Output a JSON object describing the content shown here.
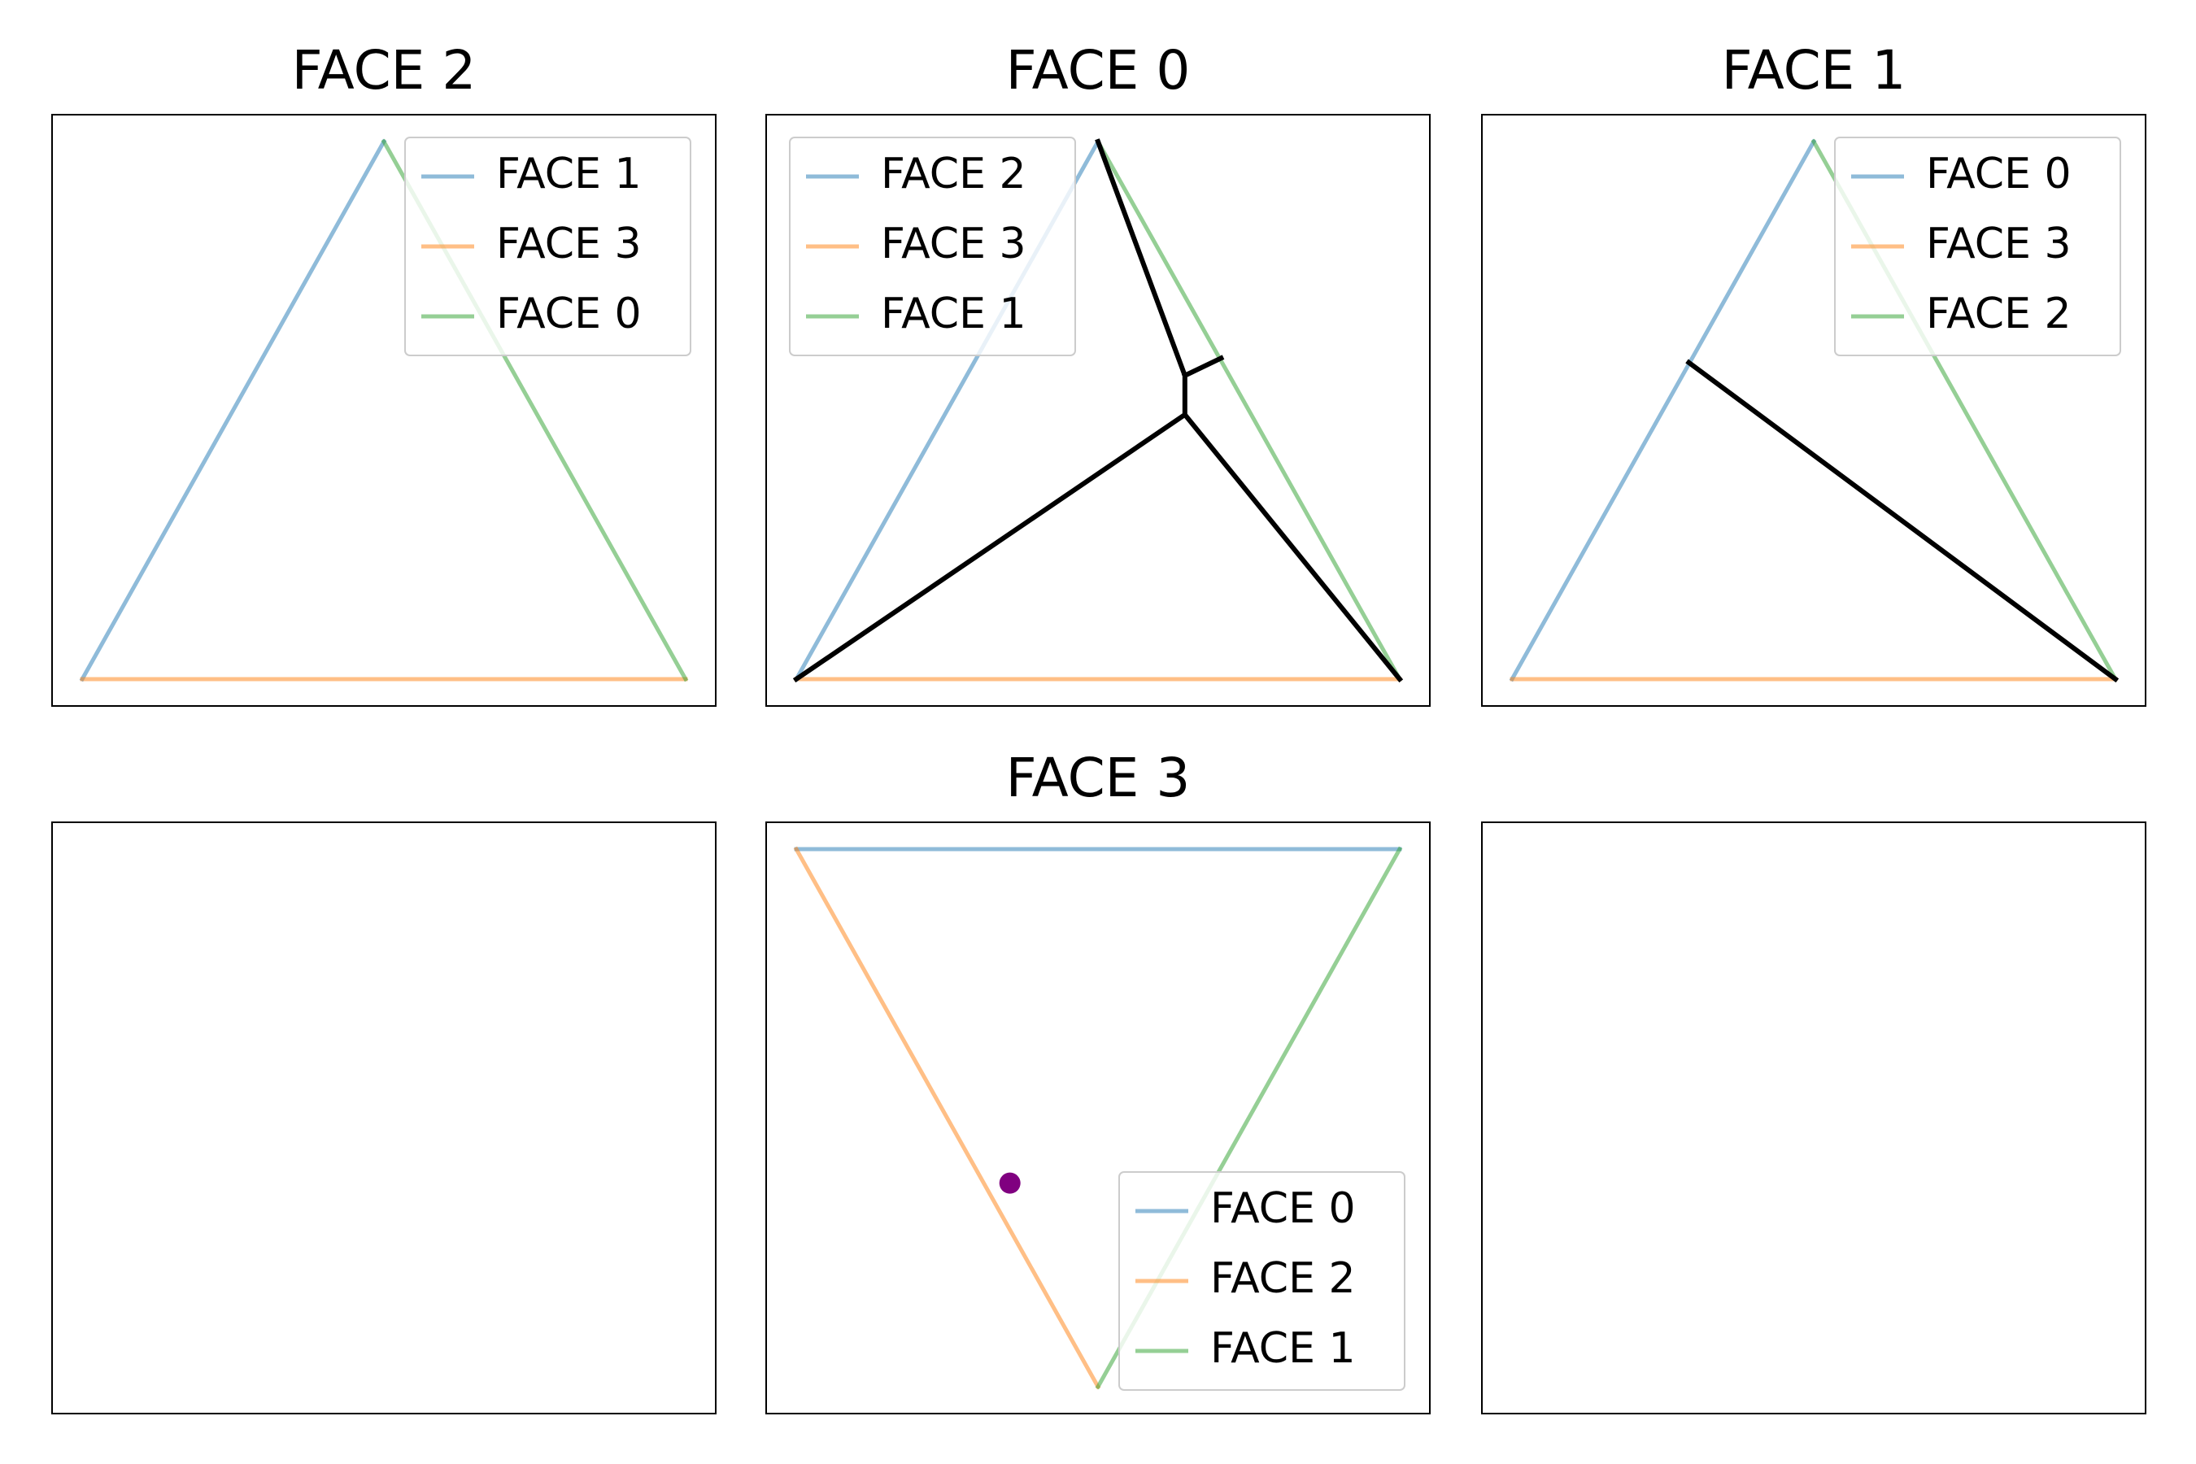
{
  "chart_data": [
    {
      "type": "line",
      "title": "FACE 2",
      "legend": "upper right",
      "xlim": [
        -0.05,
        1.05
      ],
      "ylim": [
        -0.0433,
        0.9093
      ],
      "series": [
        {
          "name": "FACE 1",
          "color": "#1f77b4",
          "alpha": 0.5,
          "x": [
            0,
            0.5
          ],
          "values": [
            0,
            0.866
          ]
        },
        {
          "name": "FACE 3",
          "color": "#ff7f0e",
          "alpha": 0.5,
          "x": [
            0,
            1
          ],
          "values": [
            0,
            0
          ]
        },
        {
          "name": "FACE 0",
          "color": "#2ca02c",
          "alpha": 0.5,
          "x": [
            0.5,
            1
          ],
          "values": [
            0.866,
            0
          ]
        }
      ]
    },
    {
      "type": "line",
      "title": "FACE 0",
      "legend": "upper left",
      "xlim": [
        -0.05,
        1.05
      ],
      "ylim": [
        -0.0433,
        0.9093
      ],
      "series": [
        {
          "name": "FACE 2",
          "color": "#1f77b4",
          "alpha": 0.5,
          "x": [
            0,
            0.5
          ],
          "values": [
            0,
            0.866
          ]
        },
        {
          "name": "FACE 3",
          "color": "#ff7f0e",
          "alpha": 0.5,
          "x": [
            0,
            1
          ],
          "values": [
            0,
            0
          ]
        },
        {
          "name": "FACE 1",
          "color": "#2ca02c",
          "alpha": 0.5,
          "x": [
            0.5,
            1
          ],
          "values": [
            0.866,
            0
          ]
        },
        {
          "color": "#000000",
          "alpha": 1,
          "x": [
            0.5,
            0.644,
            0.644,
            0,
            null,
            0.644,
            1,
            null,
            0.644,
            0.704
          ],
          "values": [
            0.866,
            0.489,
            0.426,
            0,
            null,
            0.426,
            0,
            null,
            0.489,
            0.517
          ]
        }
      ]
    },
    {
      "type": "line",
      "title": "FACE 1",
      "legend": "upper right",
      "xlim": [
        -0.05,
        1.05
      ],
      "ylim": [
        -0.0433,
        0.9093
      ],
      "series": [
        {
          "name": "FACE 0",
          "color": "#1f77b4",
          "alpha": 0.5,
          "x": [
            0,
            0.5
          ],
          "values": [
            0,
            0.866
          ]
        },
        {
          "name": "FACE 3",
          "color": "#ff7f0e",
          "alpha": 0.5,
          "x": [
            0,
            1
          ],
          "values": [
            0,
            0
          ]
        },
        {
          "name": "FACE 2",
          "color": "#2ca02c",
          "alpha": 0.5,
          "x": [
            0.5,
            1
          ],
          "values": [
            0.866,
            0
          ]
        },
        {
          "color": "#000000",
          "alpha": 1,
          "x": [
            0.293,
            1
          ],
          "values": [
            0.51,
            0
          ]
        }
      ]
    },
    {
      "type": "line",
      "title": "FACE 3",
      "legend": "lower right",
      "xlim": [
        -0.05,
        1.05
      ],
      "ylim": [
        -0.9093,
        0.0433
      ],
      "series": [
        {
          "name": "FACE 0",
          "color": "#1f77b4",
          "alpha": 0.5,
          "x": [
            0,
            1
          ],
          "values": [
            0,
            0
          ]
        },
        {
          "name": "FACE 2",
          "color": "#ff7f0e",
          "alpha": 0.5,
          "x": [
            0,
            0.5
          ],
          "values": [
            0,
            -0.866
          ]
        },
        {
          "name": "FACE 1",
          "color": "#2ca02c",
          "alpha": 0.5,
          "x": [
            0.5,
            1
          ],
          "values": [
            -0.866,
            0
          ]
        },
        {
          "color": "#800080",
          "alpha": 1,
          "marker": true,
          "x": [
            0.354
          ],
          "values": [
            -0.538
          ]
        }
      ]
    }
  ]
}
